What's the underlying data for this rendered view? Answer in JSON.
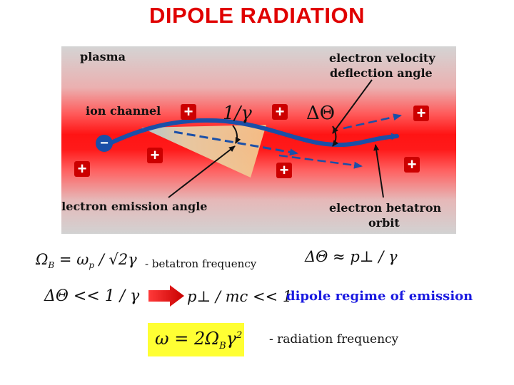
{
  "title": "DIPOLE RADIATION",
  "diagram": {
    "plasma_label": "plasma",
    "ion_channel_label": "ion channel",
    "velocity_angle_label_line1": "electron velocity",
    "velocity_angle_label_line2": "deflection angle",
    "emission_angle_label": "electron emission angle",
    "betatron_orbit_label_line1": "electron betatron",
    "betatron_orbit_label_line2": "orbit",
    "one_over_gamma": "1/γ",
    "delta_theta": "ΔΘ",
    "ion_symbol": "+",
    "electron_symbol": "−"
  },
  "equations": {
    "betatron_freq_formula": "Ω",
    "betatron_freq_caption": "- betatron frequency",
    "delta_theta_formula": "ΔΘ ≈ p⊥ / γ",
    "condition_left": "ΔΘ << 1 / γ",
    "condition_right": "p⊥ / mc << 1",
    "dipole_regime": "dipole regime of emission",
    "radiation_freq_formula": "ω = 2Ω",
    "radiation_freq_caption": "- radiation frequency"
  },
  "colors": {
    "title": "#e00000",
    "plasma_core": "#ff1a1a",
    "plasma_edge": "#d2d2d2",
    "orbit": "#1a4fa8",
    "ion_fill": "#cc0000",
    "cone": "#f2c98a",
    "dipole_text": "#1a1ae0",
    "highlight": "#ffff33"
  }
}
